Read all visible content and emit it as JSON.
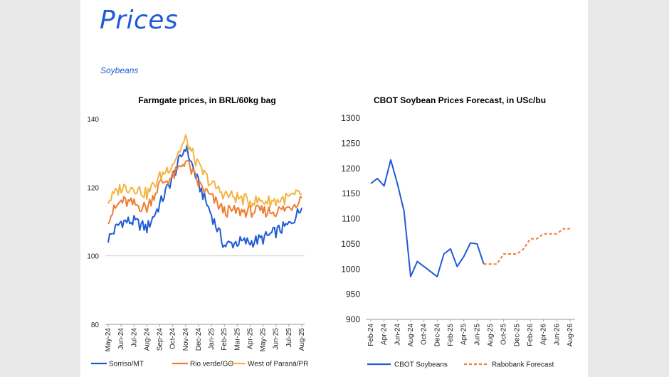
{
  "page": {
    "title": "Prices",
    "subtitle": "Soybeans"
  },
  "colors": {
    "accent": "#1f5bd6",
    "sorriso": "#1f5bd6",
    "rio_verde": "#ed7d31",
    "west_parana": "#f5b342",
    "cbot": "#1f5bd6",
    "rabobank": "#ed7d31"
  },
  "chart_data": [
    {
      "type": "line",
      "title": "Farmgate prices, in BRL/60kg bag",
      "xlabel": "",
      "ylabel": "",
      "ylim": [
        80,
        140
      ],
      "yticks": [
        80,
        100,
        120,
        140
      ],
      "grid": "horizontal at 100",
      "legend_position": "bottom",
      "x_tick_labels": [
        "May-24",
        "Jun-24",
        "Jul-24",
        "Aug-24",
        "Sep-24",
        "Oct-24",
        "Nov-24",
        "Dec-24",
        "Jan-25",
        "Feb-25",
        "Mar-25",
        "Apr-25",
        "May-25",
        "Jun-25",
        "Jul-25",
        "Aug-25"
      ],
      "x": [
        "May-24",
        "Jun-24",
        "Jul-24",
        "Aug-24",
        "Sep-24",
        "Oct-24",
        "Nov-24",
        "Dec-24",
        "Jan-25",
        "Feb-25",
        "Mar-25",
        "Apr-25",
        "May-25",
        "Jun-25",
        "Jul-25",
        "Aug-25"
      ],
      "series": [
        {
          "name": "Sorriso/MT",
          "color": "#1f5bd6",
          "values": [
            105,
            110,
            110,
            108,
            115,
            123,
            132,
            121,
            112,
            103,
            104,
            104,
            105,
            107,
            109,
            114
          ]
        },
        {
          "name": "Rio verde/GO",
          "color": "#ed7d31",
          "values": [
            111,
            116,
            115,
            114,
            121,
            123,
            128,
            121,
            117,
            113,
            113,
            113,
            113,
            113,
            114,
            117
          ]
        },
        {
          "name": "West of Paraná/PR",
          "color": "#f5b342",
          "values": [
            116,
            120,
            120,
            118,
            123,
            127,
            134,
            126,
            121,
            118,
            117,
            116,
            116,
            116,
            117,
            118
          ]
        }
      ]
    },
    {
      "type": "line",
      "title": "CBOT Soybean Prices Forecast, in USc/bu",
      "xlabel": "",
      "ylabel": "",
      "ylim": [
        900,
        1300
      ],
      "yticks": [
        900,
        950,
        1000,
        1050,
        1100,
        1150,
        1200,
        1250,
        1300
      ],
      "grid": "off",
      "legend_position": "bottom",
      "x_tick_labels": [
        "Feb-24",
        "Apr-24",
        "Jun-24",
        "Aug-24",
        "Oct-24",
        "Dec-24",
        "Feb-25",
        "Apr-25",
        "Jun-25",
        "Aug-25",
        "Oct-25",
        "Dec-25",
        "Feb-26",
        "Apr-26",
        "Jun-26",
        "Aug-26"
      ],
      "x": [
        "Feb-24",
        "Mar-24",
        "Apr-24",
        "May-24",
        "Jun-24",
        "Jul-24",
        "Aug-24",
        "Sep-24",
        "Oct-24",
        "Nov-24",
        "Dec-24",
        "Jan-25",
        "Feb-25",
        "Mar-25",
        "Apr-25",
        "May-25",
        "Jun-25",
        "Jul-25",
        "Aug-25",
        "Sep-25",
        "Oct-25",
        "Nov-25",
        "Dec-25",
        "Jan-26",
        "Feb-26",
        "Mar-26",
        "Apr-26",
        "May-26",
        "Jun-26",
        "Jul-26",
        "Aug-26"
      ],
      "series": [
        {
          "name": "CBOT Soybeans",
          "color": "#1f5bd6",
          "style": "solid",
          "values": [
            1170,
            1180,
            1165,
            1217,
            1170,
            1115,
            985,
            1015,
            1005,
            995,
            985,
            1030,
            1040,
            1005,
            1025,
            1052,
            1050,
            1010,
            null,
            null,
            null,
            null,
            null,
            null,
            null,
            null,
            null,
            null,
            null,
            null,
            null
          ]
        },
        {
          "name": "Rabobank Forecast",
          "color": "#ed7d31",
          "style": "dashed",
          "values": [
            null,
            null,
            null,
            null,
            null,
            null,
            null,
            null,
            null,
            null,
            null,
            null,
            null,
            null,
            null,
            null,
            null,
            1010,
            1010,
            1010,
            1030,
            1030,
            1030,
            1040,
            1060,
            1060,
            1070,
            1070,
            1070,
            1080,
            1080
          ]
        }
      ]
    }
  ]
}
